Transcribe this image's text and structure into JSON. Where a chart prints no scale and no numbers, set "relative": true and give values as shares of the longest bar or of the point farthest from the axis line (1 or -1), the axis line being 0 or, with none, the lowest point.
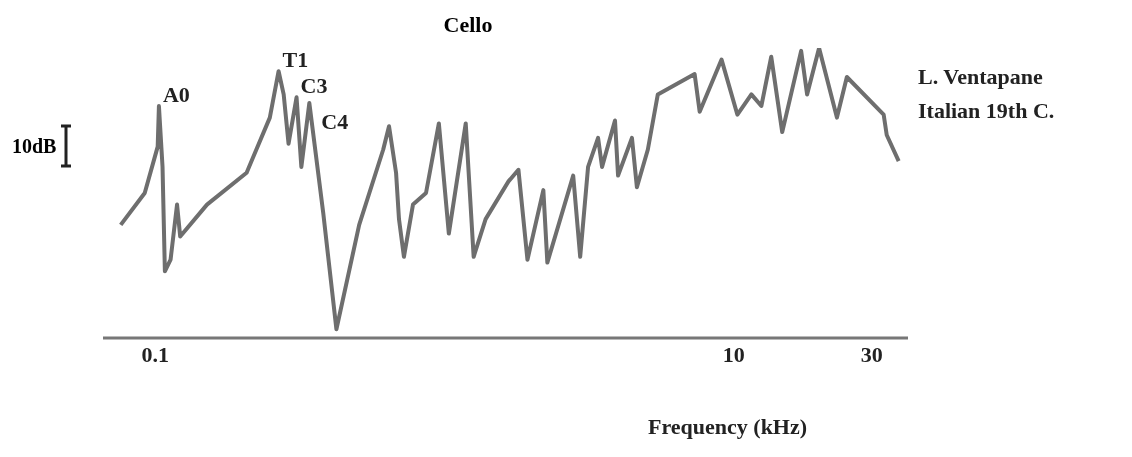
{
  "chart_data": {
    "type": "line",
    "title": "Cello",
    "xlabel": "Frequency (kHz)",
    "relative": true,
    "log": "x",
    "xlim": [
      0.066,
      40
    ],
    "xticks": [
      0.1,
      10,
      30
    ],
    "marker": "none",
    "line_style": "solid",
    "annotations": [
      "10dB",
      "L. Ventapane",
      "Italian 19th C.",
      {
        "text": "A0",
        "x": 0.103,
        "y": 0.8
      },
      {
        "text": "T1",
        "x": 0.267,
        "y": 0.92
      },
      {
        "text": "C3",
        "x": 0.308,
        "y": 0.83
      },
      {
        "text": "C4",
        "x": 0.341,
        "y": 0.81
      }
    ],
    "series": [
      {
        "color": "#6e6e6e",
        "x": [
          0.076,
          0.092,
          0.102,
          0.103,
          0.106,
          0.108,
          0.113,
          0.119,
          0.122,
          0.151,
          0.207,
          0.249,
          0.267,
          0.278,
          0.289,
          0.308,
          0.32,
          0.341,
          0.381,
          0.423,
          0.507,
          0.614,
          0.643,
          0.68,
          0.696,
          0.724,
          0.778,
          0.863,
          0.956,
          1.035,
          1.184,
          1.261,
          1.387,
          1.664,
          1.801,
          1.935,
          2.196,
          2.267,
          2.785,
          2.944,
          3.135,
          3.395,
          3.504,
          3.884,
          3.98,
          4.445,
          4.624,
          5.045,
          5.461,
          7.32,
          7.62,
          9.07,
          10.29,
          11.5,
          12.45,
          13.47,
          14.7,
          17.09,
          17.92,
          19.71,
          22.72,
          24.59,
          32.96,
          33.77,
          37.14
        ],
        "values": [
          0.39,
          0.5,
          0.66,
          0.8,
          0.59,
          0.23,
          0.27,
          0.46,
          0.35,
          0.46,
          0.57,
          0.76,
          0.92,
          0.84,
          0.67,
          0.83,
          0.59,
          0.81,
          0.43,
          0.03,
          0.39,
          0.65,
          0.73,
          0.57,
          0.41,
          0.28,
          0.46,
          0.5,
          0.74,
          0.36,
          0.74,
          0.28,
          0.41,
          0.54,
          0.58,
          0.27,
          0.51,
          0.26,
          0.56,
          0.28,
          0.59,
          0.69,
          0.59,
          0.75,
          0.56,
          0.69,
          0.52,
          0.65,
          0.84,
          0.91,
          0.78,
          0.96,
          0.77,
          0.84,
          0.8,
          0.97,
          0.71,
          0.99,
          0.84,
          1,
          0.76,
          0.9,
          0.77,
          0.7,
          0.61
        ]
      }
    ]
  }
}
